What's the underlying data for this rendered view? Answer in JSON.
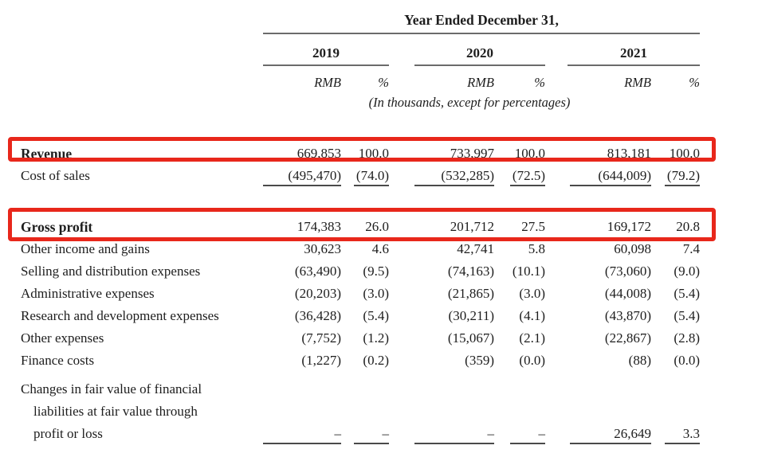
{
  "colors": {
    "highlight_red": "#e8271b",
    "text": "#1d1d1d",
    "rule": "#6b6b6b",
    "underline": "#4a4a4a"
  },
  "header": {
    "title": "Year Ended December 31,",
    "years": [
      "2019",
      "2020",
      "2021"
    ],
    "unit_rmb": "RMB",
    "unit_pct": "%",
    "note": "(In thousands, except for percentages)"
  },
  "rows": [
    {
      "label": "Revenue",
      "values": [
        "669,853",
        "100.0",
        "733,997",
        "100.0",
        "813,181",
        "100.0"
      ]
    },
    {
      "label": "Cost of sales",
      "values": [
        "(495,470)",
        "(74.0)",
        "(532,285)",
        "(72.5)",
        "(644,009)",
        "(79.2)"
      ]
    },
    {
      "label": "Gross profit",
      "values": [
        "174,383",
        "26.0",
        "201,712",
        "27.5",
        "169,172",
        "20.8"
      ]
    },
    {
      "label": "Other income and gains",
      "values": [
        "30,623",
        "4.6",
        "42,741",
        "5.8",
        "60,098",
        "7.4"
      ]
    },
    {
      "label": "Selling and distribution expenses",
      "values": [
        "(63,490)",
        "(9.5)",
        "(74,163)",
        "(10.1)",
        "(73,060)",
        "(9.0)"
      ]
    },
    {
      "label": "Administrative expenses",
      "values": [
        "(20,203)",
        "(3.0)",
        "(21,865)",
        "(3.0)",
        "(44,008)",
        "(5.4)"
      ]
    },
    {
      "label": "Research and development expenses",
      "values": [
        "(36,428)",
        "(5.4)",
        "(30,211)",
        "(4.1)",
        "(43,870)",
        "(5.4)"
      ]
    },
    {
      "label": "Other expenses",
      "values": [
        "(7,752)",
        "(1.2)",
        "(15,067)",
        "(2.1)",
        "(22,867)",
        "(2.8)"
      ]
    },
    {
      "label": "Finance costs",
      "values": [
        "(1,227)",
        "(0.2)",
        "(359)",
        "(0.0)",
        "(88)",
        "(0.0)"
      ]
    },
    {
      "label": "Changes in fair value of financial"
    },
    {
      "label": "liabilities at fair value through"
    },
    {
      "label": "profit or loss",
      "values": [
        "–",
        "–",
        "–",
        "–",
        "26,649",
        "3.3"
      ]
    }
  ]
}
